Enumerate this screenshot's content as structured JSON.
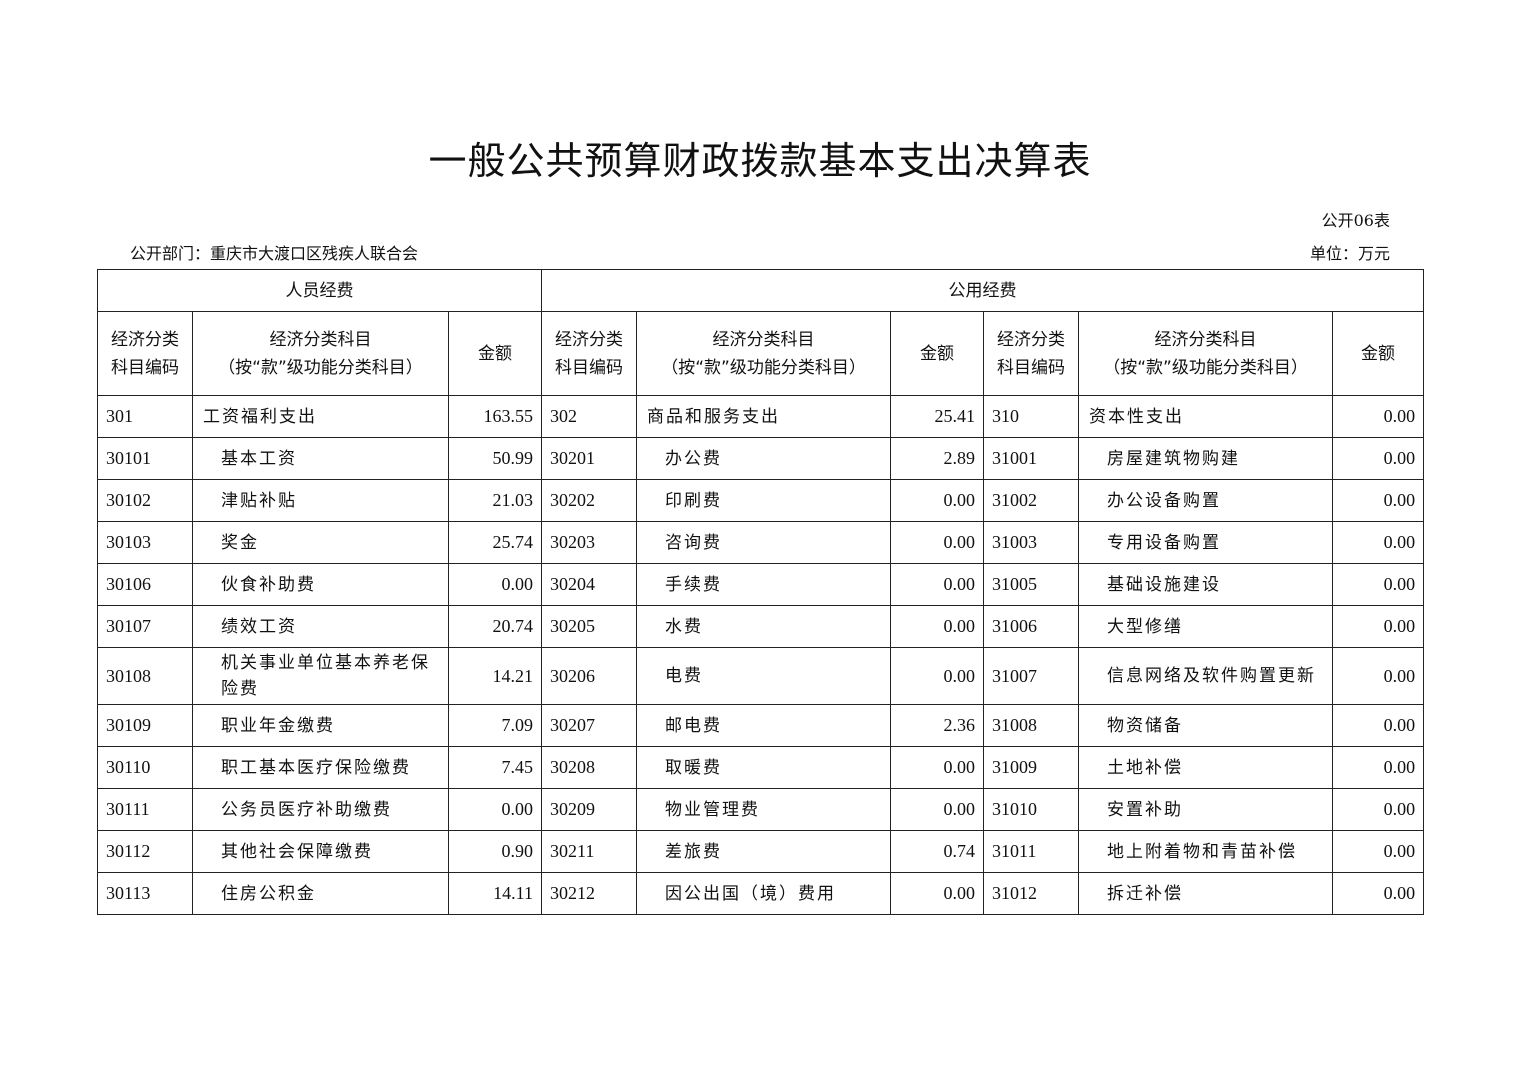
{
  "title": "一般公共预算财政拨款基本支出决算表",
  "table_no": "公开06表",
  "department": "公开部门：重庆市大渡口区残疾人联合会",
  "unit": "单位：万元",
  "groups": [
    "人员经费",
    "公用经费"
  ],
  "headers": {
    "code": "经济分类\n科目编码",
    "name": "经济分类科目\n（按“款”级功能分类科目）",
    "amount": "金额"
  },
  "rows": [
    [
      [
        "301",
        "工资福利支出",
        "163.55",
        0
      ],
      [
        "302",
        "商品和服务支出",
        "25.41",
        0
      ],
      [
        "310",
        "资本性支出",
        "0.00",
        0
      ]
    ],
    [
      [
        "30101",
        "基本工资",
        "50.99",
        1
      ],
      [
        "30201",
        "办公费",
        "2.89",
        1
      ],
      [
        "31001",
        "房屋建筑物购建",
        "0.00",
        1
      ]
    ],
    [
      [
        "30102",
        "津贴补贴",
        "21.03",
        1
      ],
      [
        "30202",
        "印刷费",
        "0.00",
        1
      ],
      [
        "31002",
        "办公设备购置",
        "0.00",
        1
      ]
    ],
    [
      [
        "30103",
        "奖金",
        "25.74",
        1
      ],
      [
        "30203",
        "咨询费",
        "0.00",
        1
      ],
      [
        "31003",
        "专用设备购置",
        "0.00",
        1
      ]
    ],
    [
      [
        "30106",
        "伙食补助费",
        "0.00",
        1
      ],
      [
        "30204",
        "手续费",
        "0.00",
        1
      ],
      [
        "31005",
        "基础设施建设",
        "0.00",
        1
      ]
    ],
    [
      [
        "30107",
        "绩效工资",
        "20.74",
        1
      ],
      [
        "30205",
        "水费",
        "0.00",
        1
      ],
      [
        "31006",
        "大型修缮",
        "0.00",
        1
      ]
    ],
    [
      [
        "30108",
        "机关事业单位基本养老保险费",
        "14.21",
        1
      ],
      [
        "30206",
        "电费",
        "0.00",
        1
      ],
      [
        "31007",
        "信息网络及软件购置更新",
        "0.00",
        1
      ]
    ],
    [
      [
        "30109",
        "职业年金缴费",
        "7.09",
        1
      ],
      [
        "30207",
        "邮电费",
        "2.36",
        1
      ],
      [
        "31008",
        "物资储备",
        "0.00",
        1
      ]
    ],
    [
      [
        "30110",
        "职工基本医疗保险缴费",
        "7.45",
        1
      ],
      [
        "30208",
        "取暖费",
        "0.00",
        1
      ],
      [
        "31009",
        "土地补偿",
        "0.00",
        1
      ]
    ],
    [
      [
        "30111",
        "公务员医疗补助缴费",
        "0.00",
        1
      ],
      [
        "30209",
        "物业管理费",
        "0.00",
        1
      ],
      [
        "31010",
        "安置补助",
        "0.00",
        1
      ]
    ],
    [
      [
        "30112",
        "其他社会保障缴费",
        "0.90",
        1
      ],
      [
        "30211",
        "差旅费",
        "0.74",
        1
      ],
      [
        "31011",
        "地上附着物和青苗补偿",
        "0.00",
        1
      ]
    ],
    [
      [
        "30113",
        "住房公积金",
        "14.11",
        1
      ],
      [
        "30212",
        "因公出国（境）费用",
        "0.00",
        1
      ],
      [
        "31012",
        "拆迁补偿",
        "0.00",
        1
      ]
    ]
  ]
}
